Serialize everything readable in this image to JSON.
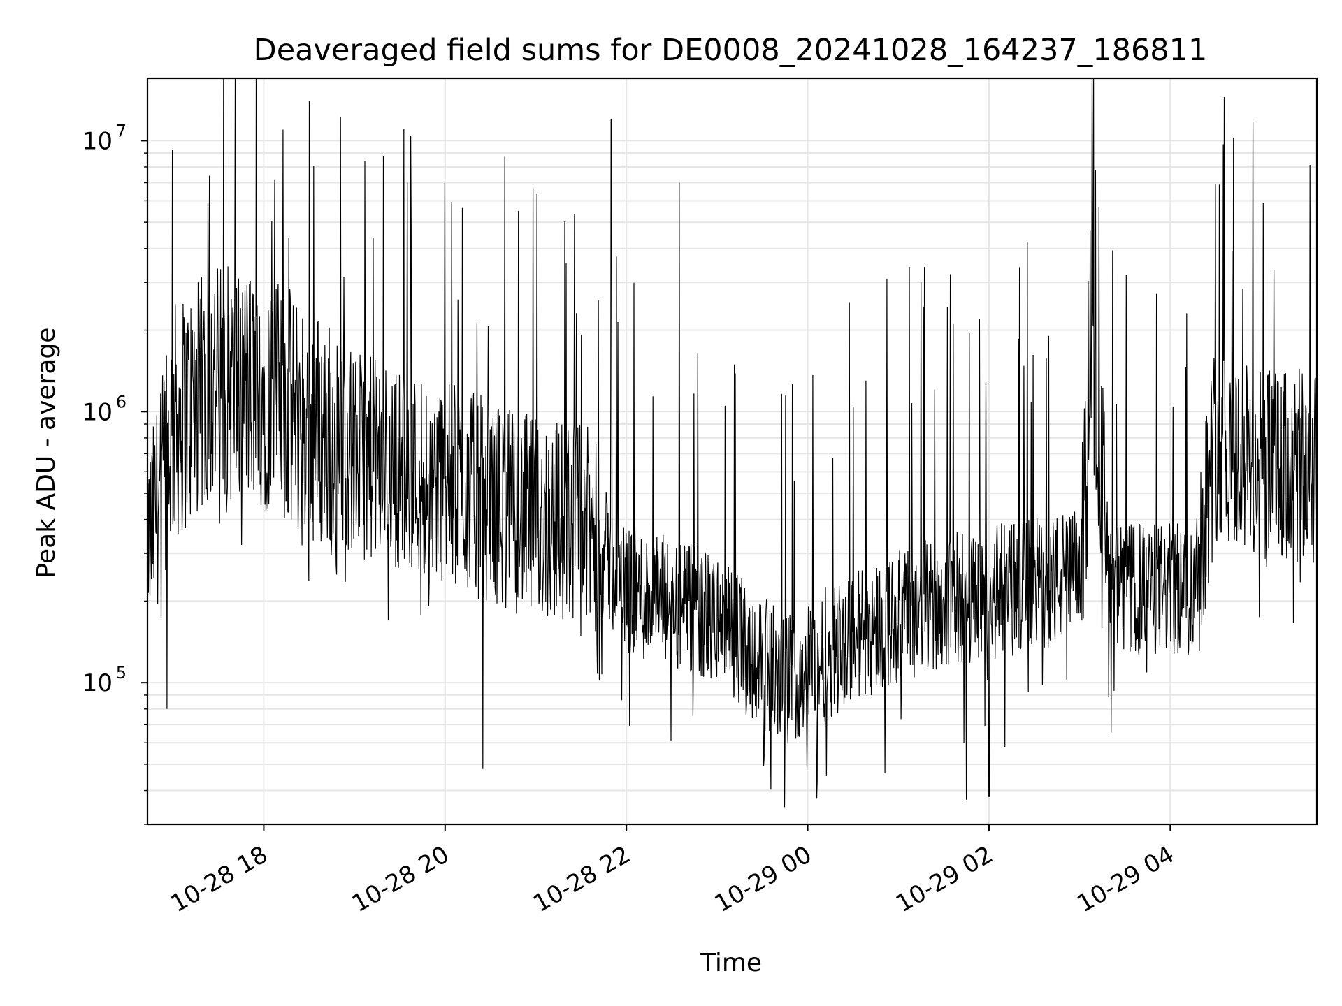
{
  "chart_data": {
    "type": "line",
    "title": "Deaveraged field sums for DE0008_20241028_164237_186811",
    "xlabel": "Time",
    "ylabel": "Peak ADU - average",
    "yscale": "log",
    "ylim": [
      30000,
      17000000
    ],
    "xlim": [
      "2024-10-28 16:43",
      "2024-10-29 05:37"
    ],
    "grid": true,
    "line_color": "#000000",
    "grid_color": "#e6e6e6",
    "x_ticks": [
      {
        "t": "2024-10-28 18:00",
        "label": "10-28 18"
      },
      {
        "t": "2024-10-28 20:00",
        "label": "10-28 20"
      },
      {
        "t": "2024-10-28 22:00",
        "label": "10-28 22"
      },
      {
        "t": "2024-10-29 00:00",
        "label": "10-29 00"
      },
      {
        "t": "2024-10-29 02:00",
        "label": "10-29 02"
      },
      {
        "t": "2024-10-29 04:00",
        "label": "10-29 04"
      }
    ],
    "y_ticks": [
      {
        "value": 100000,
        "base": "10",
        "exp": "5"
      },
      {
        "value": 1000000,
        "base": "10",
        "exp": "6"
      },
      {
        "value": 10000000,
        "base": "10",
        "exp": "7"
      }
    ],
    "series": [
      {
        "values_shape": "dense noisy series; typical level per time window (approximate)",
        "profile": [
          {
            "t": "2024-10-28 16:43",
            "median": 300000
          },
          {
            "t": "2024-10-28 17:00",
            "median": 900000
          },
          {
            "t": "2024-10-28 17:30",
            "median": 1300000
          },
          {
            "t": "2024-10-28 18:00",
            "median": 1200000
          },
          {
            "t": "2024-10-28 18:30",
            "median": 900000
          },
          {
            "t": "2024-10-28 19:00",
            "median": 700000
          },
          {
            "t": "2024-10-28 20:00",
            "median": 550000
          },
          {
            "t": "2024-10-28 21:00",
            "median": 400000
          },
          {
            "t": "2024-10-28 21:30",
            "median": 400000
          },
          {
            "t": "2024-10-28 22:00",
            "median": 220000
          },
          {
            "t": "2024-10-28 23:00",
            "median": 170000
          },
          {
            "t": "2024-10-28 23:45",
            "median": 100000
          },
          {
            "t": "2024-10-29 00:30",
            "median": 150000
          },
          {
            "t": "2024-10-29 01:30",
            "median": 200000
          },
          {
            "t": "2024-10-29 02:30",
            "median": 230000
          },
          {
            "t": "2024-10-29 03:00",
            "median": 250000
          },
          {
            "t": "2024-10-29 03:10",
            "median": 1500000
          },
          {
            "t": "2024-10-29 03:20",
            "median": 220000
          },
          {
            "t": "2024-10-29 04:15",
            "median": 220000
          },
          {
            "t": "2024-10-29 04:30",
            "median": 800000
          },
          {
            "t": "2024-10-29 05:00",
            "median": 600000
          },
          {
            "t": "2024-10-29 05:37",
            "median": 600000
          }
        ],
        "notable_points": [
          {
            "t": "2024-10-28 16:56",
            "value": 80000
          },
          {
            "t": "2024-10-28 21:50",
            "value": 12000000
          },
          {
            "t": "2024-10-28 22:35",
            "value": 7000000
          },
          {
            "t": "2024-10-28 19:35",
            "value": 7000000
          },
          {
            "t": "2024-10-29 04:35",
            "value": 9700000
          },
          {
            "t": "2024-10-29 01:45",
            "value": 37000
          },
          {
            "t": "2024-10-29 02:00",
            "value": 38000
          },
          {
            "t": "2024-10-29 01:15",
            "value": 3000000
          },
          {
            "t": "2024-10-28 20:25",
            "value": 48000
          }
        ]
      }
    ]
  }
}
